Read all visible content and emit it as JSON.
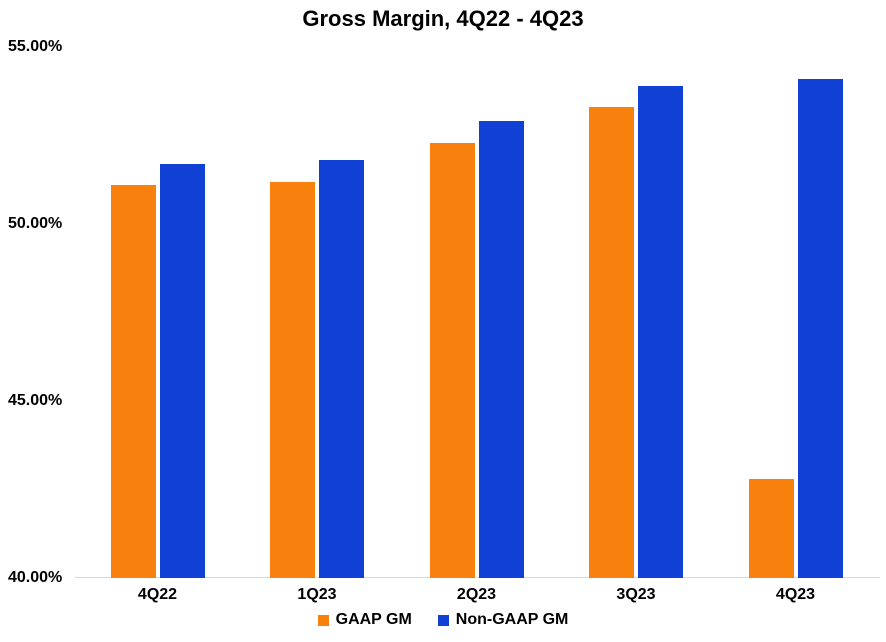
{
  "chart_data": {
    "type": "bar",
    "title": "Gross Margin, 4Q22 - 4Q23",
    "categories": [
      "4Q22",
      "1Q23",
      "2Q23",
      "3Q23",
      "4Q23"
    ],
    "series": [
      {
        "name": "GAAP GM",
        "color": "#F8800D",
        "values": [
          51.1,
          51.2,
          52.3,
          53.3,
          42.8
        ]
      },
      {
        "name": "Non-GAAP GM",
        "color": "#1141D4",
        "values": [
          51.7,
          51.8,
          52.9,
          53.9,
          54.1
        ]
      }
    ],
    "xlabel": "",
    "ylabel": "",
    "ylim": [
      40,
      55
    ],
    "yticks": [
      {
        "value": 40,
        "label": "40.00%"
      },
      {
        "value": 45,
        "label": "45.00%"
      },
      {
        "value": 50,
        "label": "50.00%"
      },
      {
        "value": 55,
        "label": "55.00%"
      }
    ],
    "grid": false,
    "legend_position": "bottom"
  }
}
